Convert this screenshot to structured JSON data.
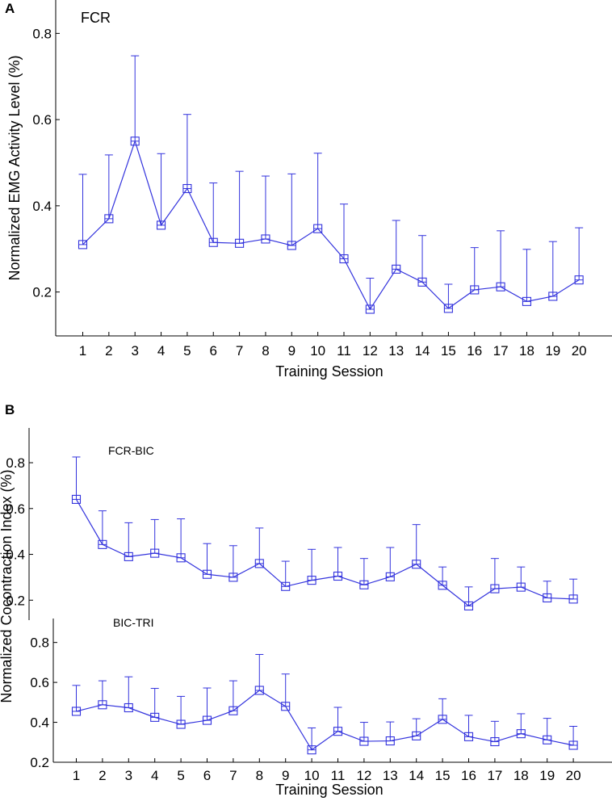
{
  "chart_data": [
    {
      "type": "line",
      "panel_label": "A",
      "title": "FCR",
      "xlabel": "Training Session",
      "ylabel": "Normalized EMG Activity Level (%)",
      "ylim": [
        0.1,
        0.84
      ],
      "yticks": [
        0.2,
        0.4,
        0.6,
        0.8
      ],
      "ytick_labels": [
        "0.2",
        "0.4",
        "0.6",
        "0.8"
      ],
      "x": [
        1,
        2,
        3,
        4,
        5,
        6,
        7,
        8,
        9,
        10,
        11,
        12,
        13,
        14,
        15,
        16,
        17,
        18,
        19,
        20
      ],
      "xtick_labels": [
        "1",
        "2",
        "3",
        "4",
        "5",
        "6",
        "7",
        "8",
        "9",
        "10",
        "11",
        "12",
        "13",
        "14",
        "15",
        "16",
        "17",
        "18",
        "19",
        "20"
      ],
      "series": [
        {
          "name": "FCR",
          "color": "#3333dd",
          "values": [
            0.31,
            0.37,
            0.55,
            0.355,
            0.44,
            0.315,
            0.313,
            0.323,
            0.308,
            0.347,
            0.277,
            0.16,
            0.253,
            0.223,
            0.162,
            0.205,
            0.212,
            0.178,
            0.19,
            0.228
          ],
          "error_upper": [
            0.473,
            0.518,
            0.748,
            0.521,
            0.612,
            0.453,
            0.48,
            0.469,
            0.474,
            0.522,
            0.404,
            0.232,
            0.366,
            0.331,
            0.218,
            0.303,
            0.342,
            0.299,
            0.317,
            0.349
          ]
        }
      ]
    },
    {
      "type": "line",
      "panel_label": "B",
      "title": "FCR-BIC",
      "xlabel": "",
      "ylabel": "Normalized Cocontraction Index (%)",
      "ylim": [
        0.12,
        0.92
      ],
      "yticks": [
        0.2,
        0.4,
        0.6,
        0.8
      ],
      "ytick_labels": [
        "0.2",
        "0.4",
        "0.6",
        "0.8"
      ],
      "x": [
        1,
        2,
        3,
        4,
        5,
        6,
        7,
        8,
        9,
        10,
        11,
        12,
        13,
        14,
        15,
        16,
        17,
        18,
        19,
        20
      ],
      "series": [
        {
          "name": "FCR-BIC",
          "color": "#3333dd",
          "values": [
            0.64,
            0.443,
            0.39,
            0.405,
            0.385,
            0.313,
            0.3,
            0.36,
            0.26,
            0.287,
            0.305,
            0.267,
            0.302,
            0.357,
            0.265,
            0.175,
            0.25,
            0.257,
            0.21,
            0.205
          ],
          "error_upper": [
            0.825,
            0.59,
            0.538,
            0.552,
            0.555,
            0.447,
            0.438,
            0.515,
            0.37,
            0.422,
            0.43,
            0.382,
            0.43,
            0.53,
            0.345,
            0.258,
            0.382,
            0.345,
            0.283,
            0.292
          ]
        }
      ]
    },
    {
      "type": "line",
      "title": "BIC-TRI",
      "xlabel": "Training Session",
      "ylabel": "",
      "ylim": [
        0.2,
        0.92
      ],
      "yticks": [
        0.2,
        0.4,
        0.6,
        0.8
      ],
      "ytick_labels": [
        "0.2",
        "0.4",
        "0.6",
        "0.8"
      ],
      "x": [
        1,
        2,
        3,
        4,
        5,
        6,
        7,
        8,
        9,
        10,
        11,
        12,
        13,
        14,
        15,
        16,
        17,
        18,
        19,
        20
      ],
      "xtick_labels": [
        "1",
        "2",
        "3",
        "4",
        "5",
        "6",
        "7",
        "8",
        "9",
        "10",
        "11",
        "12",
        "13",
        "14",
        "15",
        "16",
        "17",
        "18",
        "19",
        "20"
      ],
      "series": [
        {
          "name": "BIC-TRI",
          "color": "#3333dd",
          "values": [
            0.455,
            0.488,
            0.473,
            0.425,
            0.39,
            0.41,
            0.458,
            0.56,
            0.48,
            0.262,
            0.355,
            0.305,
            0.307,
            0.332,
            0.415,
            0.328,
            0.303,
            0.343,
            0.312,
            0.285
          ],
          "error_upper": [
            0.585,
            0.608,
            0.628,
            0.57,
            0.53,
            0.572,
            0.608,
            0.74,
            0.642,
            0.372,
            0.475,
            0.4,
            0.402,
            0.418,
            0.518,
            0.435,
            0.405,
            0.443,
            0.42,
            0.38
          ]
        }
      ]
    }
  ]
}
